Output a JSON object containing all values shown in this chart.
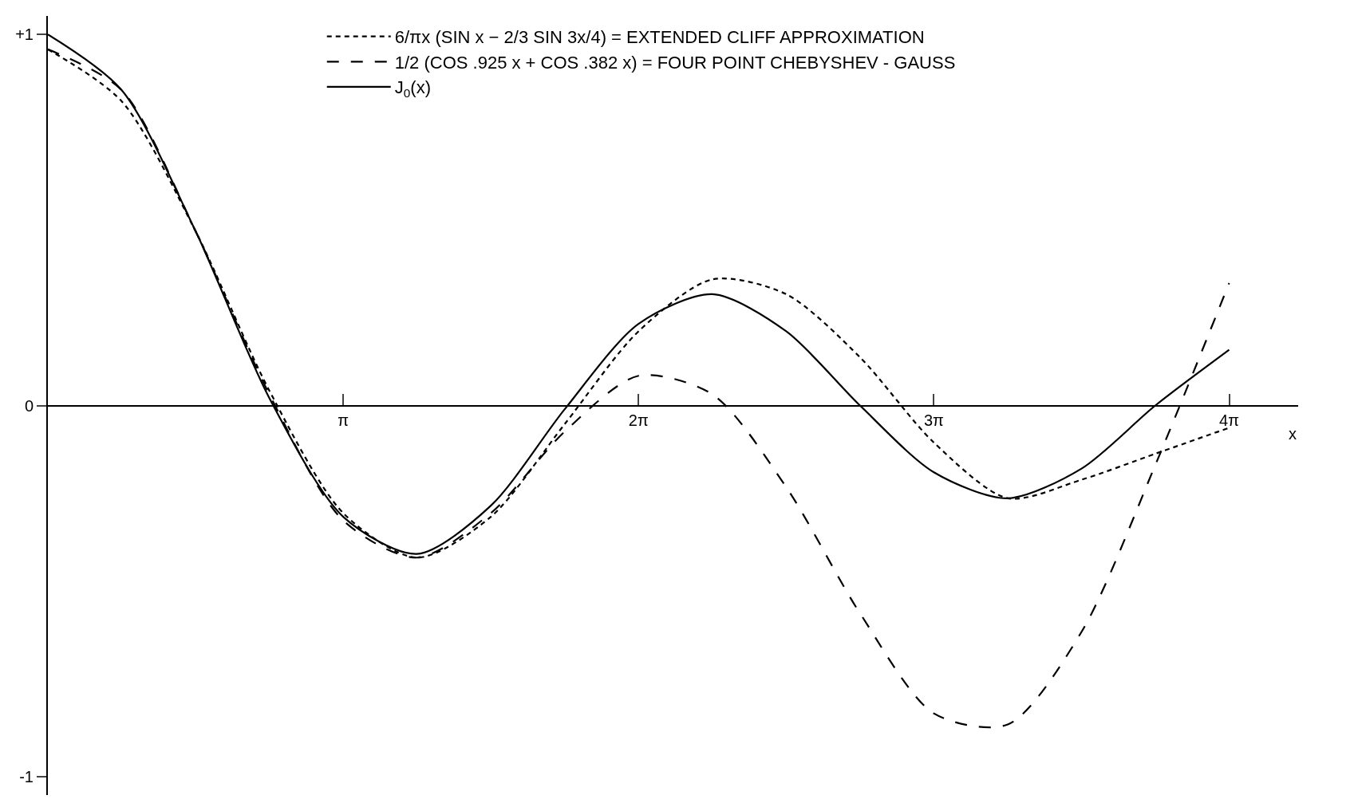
{
  "chart_data": {
    "type": "line",
    "xlabel": "x",
    "x": [
      0,
      0.785,
      1.571,
      2.356,
      3.142,
      3.927,
      4.712,
      5.498,
      6.283,
      7.069,
      7.854,
      8.639,
      9.425,
      10.21,
      10.996,
      11.781,
      12.566
    ],
    "series": [
      {
        "name": "6/πx (SIN x − 2/3 SIN 3x/4) = EXTENDED CLIFF APPROXIMATION",
        "color": "#000000",
        "line_style": "dotted",
        "values": [
          0.96,
          0.82,
          0.47,
          0.04,
          -0.29,
          -0.41,
          -0.3,
          -0.05,
          0.2,
          0.34,
          0.3,
          0.13,
          -0.1,
          -0.25,
          -0.2,
          -0.13,
          -0.06
        ]
      },
      {
        "name": "1/2 (COS .925 x + COS .382 x) = FOUR POINT CHEBYSHEV - GAUSS",
        "color": "#000000",
        "line_style": "dashed",
        "values": [
          0.96,
          0.85,
          0.47,
          0.03,
          -0.31,
          -0.41,
          -0.29,
          -0.07,
          0.08,
          0.03,
          -0.22,
          -0.56,
          -0.83,
          -0.86,
          -0.61,
          -0.16,
          0.33
        ]
      },
      {
        "name": "J$_{0}$(x)",
        "color": "#000000",
        "line_style": "solid",
        "values": [
          1,
          0.85,
          0.47,
          0.02,
          -0.3,
          -0.4,
          -0.27,
          -0.01,
          0.22,
          0.3,
          0.2,
          0.0,
          -0.18,
          -0.25,
          -0.17,
          0.0,
          0.15
        ]
      }
    ],
    "xlim": [
      0,
      13.3
    ],
    "ylim": [
      -1.05,
      1.05
    ],
    "xticks": [
      {
        "value": 3.1416,
        "label": "π"
      },
      {
        "value": 6.2832,
        "label": "2π"
      },
      {
        "value": 9.4248,
        "label": "3π"
      },
      {
        "value": 12.566,
        "label": "4π"
      }
    ],
    "yticks": [
      {
        "value": 1,
        "label": "+1"
      },
      0,
      {
        "value": -1,
        "label": "-1"
      }
    ],
    "legend": "top",
    "marker": "none"
  }
}
